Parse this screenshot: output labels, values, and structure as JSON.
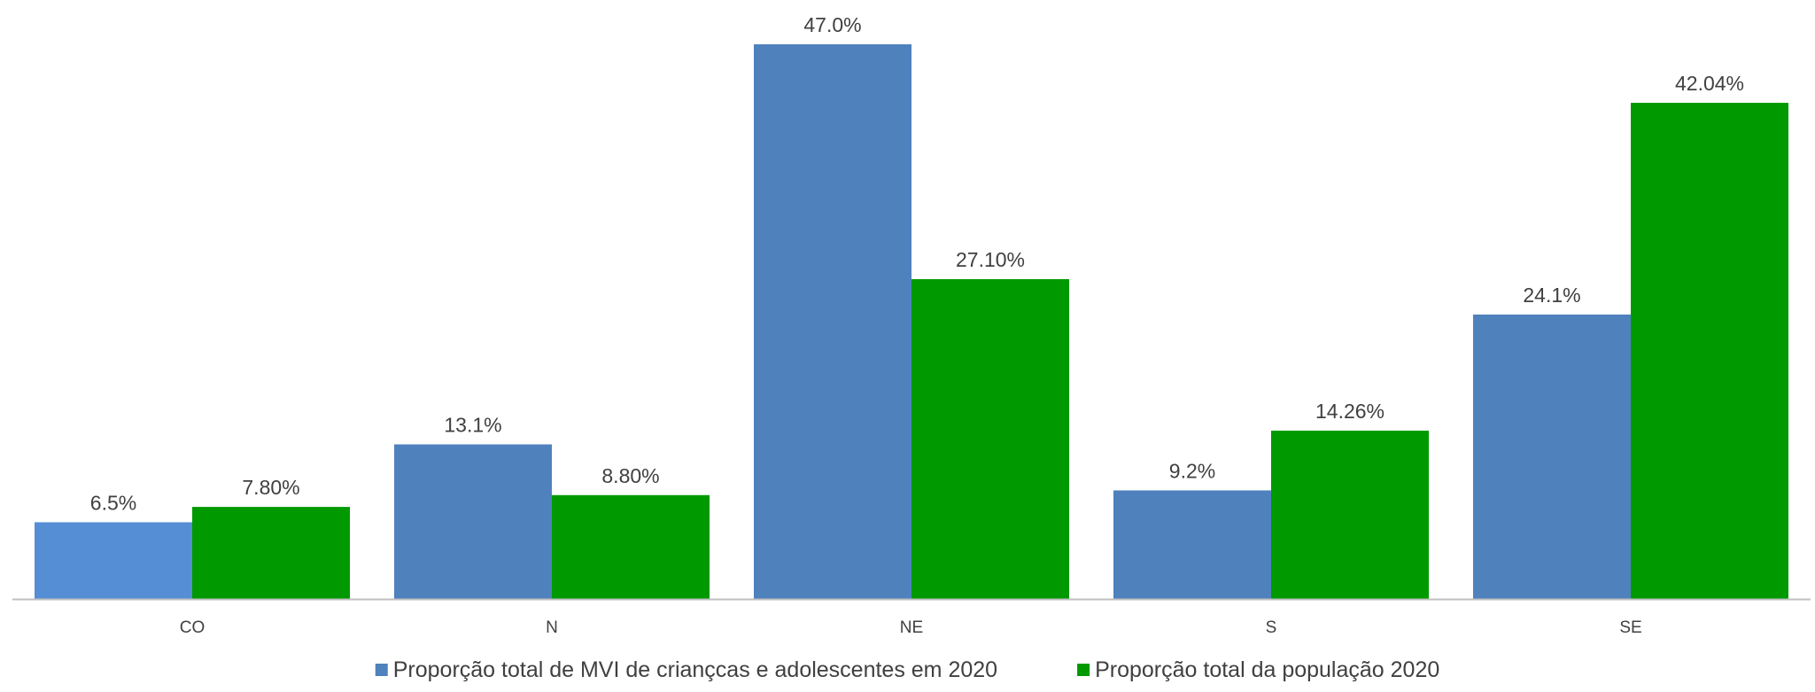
{
  "chart_data": {
    "type": "bar",
    "categories": [
      "CO",
      "N",
      "NE",
      "S",
      "SE"
    ],
    "series": [
      {
        "name": "Proporção total de MVI de criançcas e adolescentes em 2020",
        "values": [
          6.5,
          13.1,
          47.0,
          9.2,
          24.1
        ],
        "labels": [
          "6.5%",
          "13.1%",
          "47.0%",
          "9.2%",
          "24.1%"
        ],
        "color": "#4F81BD",
        "point_colors": [
          "#558ED5",
          "#4F81BD",
          "#4F81BD",
          "#4F81BD",
          "#4F81BD"
        ]
      },
      {
        "name": "Proporção total da população 2020",
        "values": [
          7.8,
          8.8,
          27.1,
          14.26,
          42.04
        ],
        "labels": [
          "7.80%",
          "8.80%",
          "27.10%",
          "14.26%",
          "42.04%"
        ],
        "color": "#009900"
      }
    ],
    "ylim": [
      0,
      50
    ],
    "grid": false,
    "legend": "bottom",
    "axis_color": "#BFBFBF"
  }
}
